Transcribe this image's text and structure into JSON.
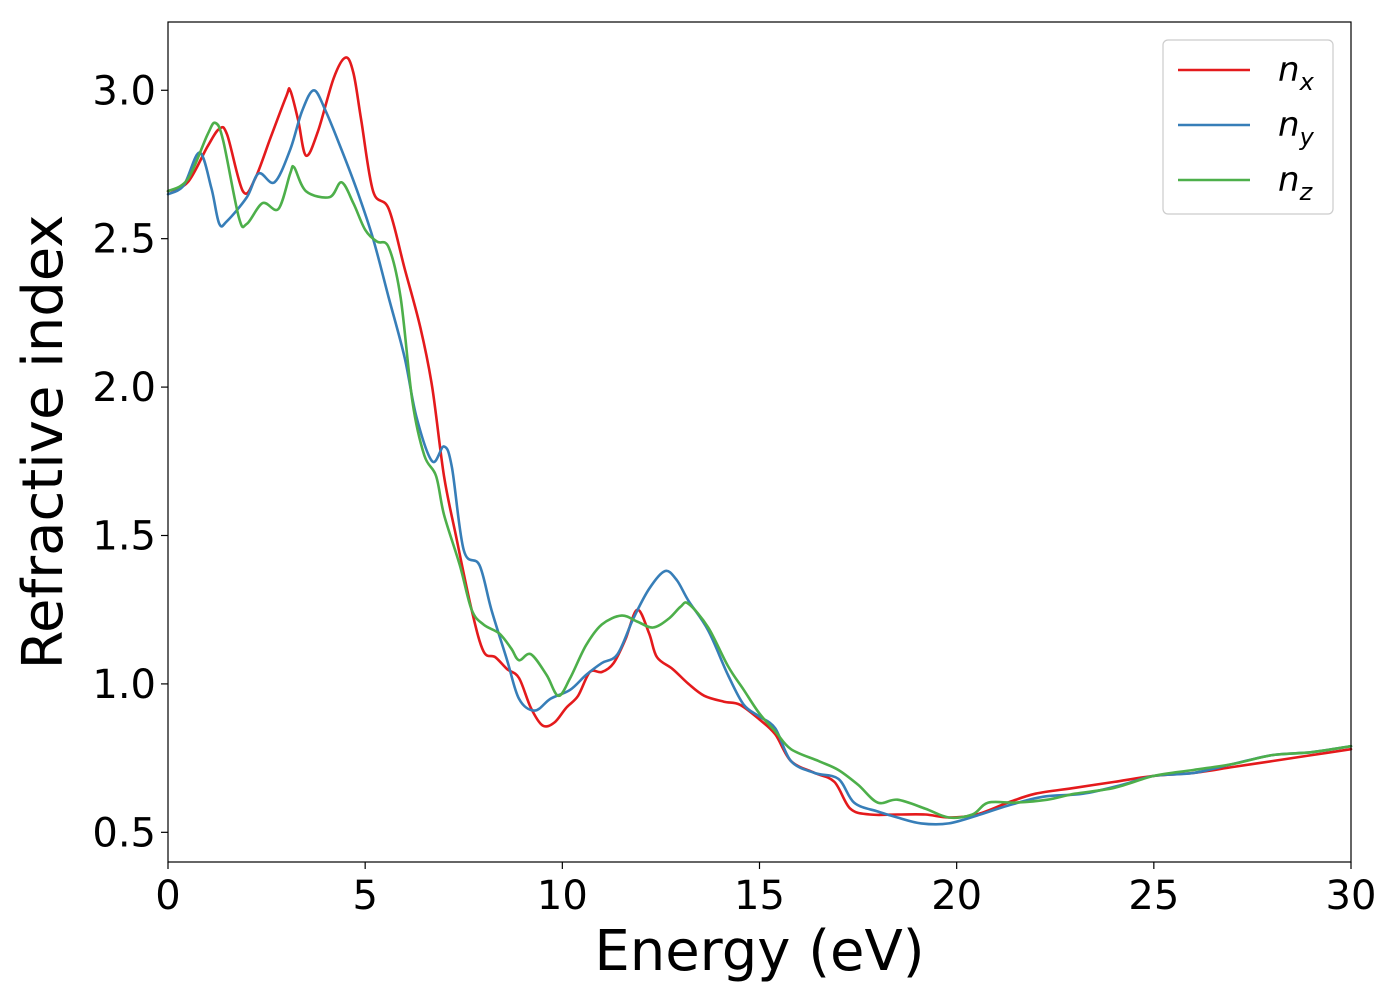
{
  "chart_data": {
    "type": "line",
    "title": "",
    "xlabel": "Energy (eV)",
    "ylabel": "Refractive index",
    "xlim": [
      0,
      30
    ],
    "ylim": [
      0.4,
      3.23
    ],
    "xticks": [
      0,
      5,
      10,
      15,
      20,
      25,
      30
    ],
    "yticks": [
      0.5,
      1.0,
      1.5,
      2.0,
      2.5,
      3.0
    ],
    "xtick_labels": [
      "0",
      "5",
      "10",
      "15",
      "20",
      "25",
      "30"
    ],
    "ytick_labels": [
      "0.5",
      "1.0",
      "1.5",
      "2.0",
      "2.5",
      "3.0"
    ],
    "grid": false,
    "legend": "top-right",
    "series": [
      {
        "name": "n",
        "subscript": "x",
        "color": "#e41a1c",
        "points": [
          [
            0,
            2.66
          ],
          [
            0.5,
            2.69
          ],
          [
            1.0,
            2.81
          ],
          [
            1.3,
            2.87
          ],
          [
            1.5,
            2.85
          ],
          [
            1.9,
            2.66
          ],
          [
            2.2,
            2.7
          ],
          [
            2.6,
            2.84
          ],
          [
            3.0,
            2.98
          ],
          [
            3.1,
            3.0
          ],
          [
            3.3,
            2.9
          ],
          [
            3.5,
            2.78
          ],
          [
            3.8,
            2.86
          ],
          [
            4.2,
            3.04
          ],
          [
            4.5,
            3.11
          ],
          [
            4.7,
            3.06
          ],
          [
            4.9,
            2.9
          ],
          [
            5.2,
            2.66
          ],
          [
            5.6,
            2.6
          ],
          [
            6.0,
            2.4
          ],
          [
            6.4,
            2.2
          ],
          [
            6.7,
            2.0
          ],
          [
            7.0,
            1.7
          ],
          [
            7.3,
            1.5
          ],
          [
            7.7,
            1.25
          ],
          [
            8.0,
            1.11
          ],
          [
            8.3,
            1.09
          ],
          [
            8.6,
            1.05
          ],
          [
            8.9,
            1.02
          ],
          [
            9.2,
            0.92
          ],
          [
            9.5,
            0.86
          ],
          [
            9.8,
            0.87
          ],
          [
            10.1,
            0.92
          ],
          [
            10.4,
            0.96
          ],
          [
            10.7,
            1.04
          ],
          [
            11.0,
            1.04
          ],
          [
            11.3,
            1.07
          ],
          [
            11.6,
            1.15
          ],
          [
            11.9,
            1.25
          ],
          [
            12.2,
            1.17
          ],
          [
            12.4,
            1.09
          ],
          [
            12.8,
            1.05
          ],
          [
            13.2,
            1.0
          ],
          [
            13.6,
            0.96
          ],
          [
            14.1,
            0.94
          ],
          [
            14.5,
            0.93
          ],
          [
            15.0,
            0.88
          ],
          [
            15.4,
            0.83
          ],
          [
            15.8,
            0.74
          ],
          [
            16.4,
            0.7
          ],
          [
            16.9,
            0.67
          ],
          [
            17.3,
            0.58
          ],
          [
            17.8,
            0.56
          ],
          [
            18.5,
            0.56
          ],
          [
            19.2,
            0.56
          ],
          [
            19.8,
            0.55
          ],
          [
            20.5,
            0.56
          ],
          [
            21.3,
            0.6
          ],
          [
            22.0,
            0.63
          ],
          [
            23.0,
            0.65
          ],
          [
            24.0,
            0.67
          ],
          [
            25.0,
            0.69
          ],
          [
            26.0,
            0.7
          ],
          [
            27.0,
            0.72
          ],
          [
            28.0,
            0.74
          ],
          [
            29.0,
            0.76
          ],
          [
            30.0,
            0.78
          ]
        ]
      },
      {
        "name": "n",
        "subscript": "y",
        "color": "#377eb8",
        "points": [
          [
            0,
            2.65
          ],
          [
            0.4,
            2.68
          ],
          [
            0.8,
            2.79
          ],
          [
            1.1,
            2.67
          ],
          [
            1.3,
            2.55
          ],
          [
            1.5,
            2.56
          ],
          [
            2.0,
            2.64
          ],
          [
            2.3,
            2.72
          ],
          [
            2.7,
            2.69
          ],
          [
            3.1,
            2.8
          ],
          [
            3.4,
            2.93
          ],
          [
            3.7,
            3.0
          ],
          [
            4.0,
            2.93
          ],
          [
            4.4,
            2.8
          ],
          [
            4.8,
            2.66
          ],
          [
            5.2,
            2.5
          ],
          [
            5.6,
            2.3
          ],
          [
            6.0,
            2.1
          ],
          [
            6.3,
            1.9
          ],
          [
            6.7,
            1.75
          ],
          [
            7.0,
            1.8
          ],
          [
            7.2,
            1.73
          ],
          [
            7.5,
            1.45
          ],
          [
            7.9,
            1.4
          ],
          [
            8.2,
            1.25
          ],
          [
            8.6,
            1.08
          ],
          [
            8.9,
            0.95
          ],
          [
            9.3,
            0.91
          ],
          [
            9.7,
            0.95
          ],
          [
            10.2,
            0.98
          ],
          [
            10.6,
            1.03
          ],
          [
            11.0,
            1.07
          ],
          [
            11.4,
            1.1
          ],
          [
            11.8,
            1.22
          ],
          [
            12.2,
            1.32
          ],
          [
            12.6,
            1.38
          ],
          [
            12.9,
            1.35
          ],
          [
            13.2,
            1.28
          ],
          [
            13.7,
            1.18
          ],
          [
            14.2,
            1.03
          ],
          [
            14.6,
            0.93
          ],
          [
            15.0,
            0.89
          ],
          [
            15.4,
            0.85
          ],
          [
            15.8,
            0.74
          ],
          [
            16.4,
            0.7
          ],
          [
            17.0,
            0.68
          ],
          [
            17.4,
            0.6
          ],
          [
            18.0,
            0.57
          ],
          [
            18.5,
            0.55
          ],
          [
            19.1,
            0.53
          ],
          [
            19.8,
            0.53
          ],
          [
            20.6,
            0.56
          ],
          [
            21.3,
            0.59
          ],
          [
            22.2,
            0.62
          ],
          [
            23.2,
            0.63
          ],
          [
            24.2,
            0.66
          ],
          [
            25.0,
            0.69
          ],
          [
            26.0,
            0.7
          ],
          [
            27.0,
            0.73
          ],
          [
            28.0,
            0.76
          ],
          [
            29.0,
            0.77
          ],
          [
            30.0,
            0.79
          ]
        ]
      },
      {
        "name": "n",
        "subscript": "z",
        "color": "#4daf4a",
        "points": [
          [
            0,
            2.66
          ],
          [
            0.5,
            2.7
          ],
          [
            1.0,
            2.85
          ],
          [
            1.2,
            2.89
          ],
          [
            1.4,
            2.83
          ],
          [
            1.8,
            2.57
          ],
          [
            2.0,
            2.55
          ],
          [
            2.4,
            2.62
          ],
          [
            2.8,
            2.6
          ],
          [
            3.1,
            2.72
          ],
          [
            3.2,
            2.74
          ],
          [
            3.5,
            2.66
          ],
          [
            4.1,
            2.64
          ],
          [
            4.4,
            2.69
          ],
          [
            4.7,
            2.62
          ],
          [
            5.0,
            2.53
          ],
          [
            5.3,
            2.49
          ],
          [
            5.6,
            2.47
          ],
          [
            5.9,
            2.3
          ],
          [
            6.2,
            1.95
          ],
          [
            6.5,
            1.77
          ],
          [
            6.8,
            1.7
          ],
          [
            7.0,
            1.57
          ],
          [
            7.4,
            1.4
          ],
          [
            7.7,
            1.25
          ],
          [
            8.0,
            1.2
          ],
          [
            8.4,
            1.17
          ],
          [
            8.7,
            1.12
          ],
          [
            8.9,
            1.08
          ],
          [
            9.2,
            1.1
          ],
          [
            9.6,
            1.03
          ],
          [
            9.9,
            0.96
          ],
          [
            10.2,
            1.02
          ],
          [
            10.6,
            1.13
          ],
          [
            11.0,
            1.2
          ],
          [
            11.5,
            1.23
          ],
          [
            11.9,
            1.21
          ],
          [
            12.3,
            1.19
          ],
          [
            12.7,
            1.22
          ],
          [
            13.0,
            1.26
          ],
          [
            13.2,
            1.27
          ],
          [
            13.7,
            1.19
          ],
          [
            14.2,
            1.06
          ],
          [
            14.6,
            0.98
          ],
          [
            15.0,
            0.9
          ],
          [
            15.4,
            0.84
          ],
          [
            15.8,
            0.78
          ],
          [
            16.5,
            0.74
          ],
          [
            17.0,
            0.71
          ],
          [
            17.5,
            0.66
          ],
          [
            18.0,
            0.6
          ],
          [
            18.5,
            0.61
          ],
          [
            19.2,
            0.58
          ],
          [
            19.8,
            0.55
          ],
          [
            20.4,
            0.56
          ],
          [
            20.8,
            0.6
          ],
          [
            21.5,
            0.6
          ],
          [
            22.3,
            0.61
          ],
          [
            23.0,
            0.63
          ],
          [
            24.0,
            0.65
          ],
          [
            25.0,
            0.69
          ],
          [
            26.0,
            0.71
          ],
          [
            27.0,
            0.73
          ],
          [
            28.0,
            0.76
          ],
          [
            29.0,
            0.77
          ],
          [
            30.0,
            0.79
          ]
        ]
      }
    ]
  }
}
